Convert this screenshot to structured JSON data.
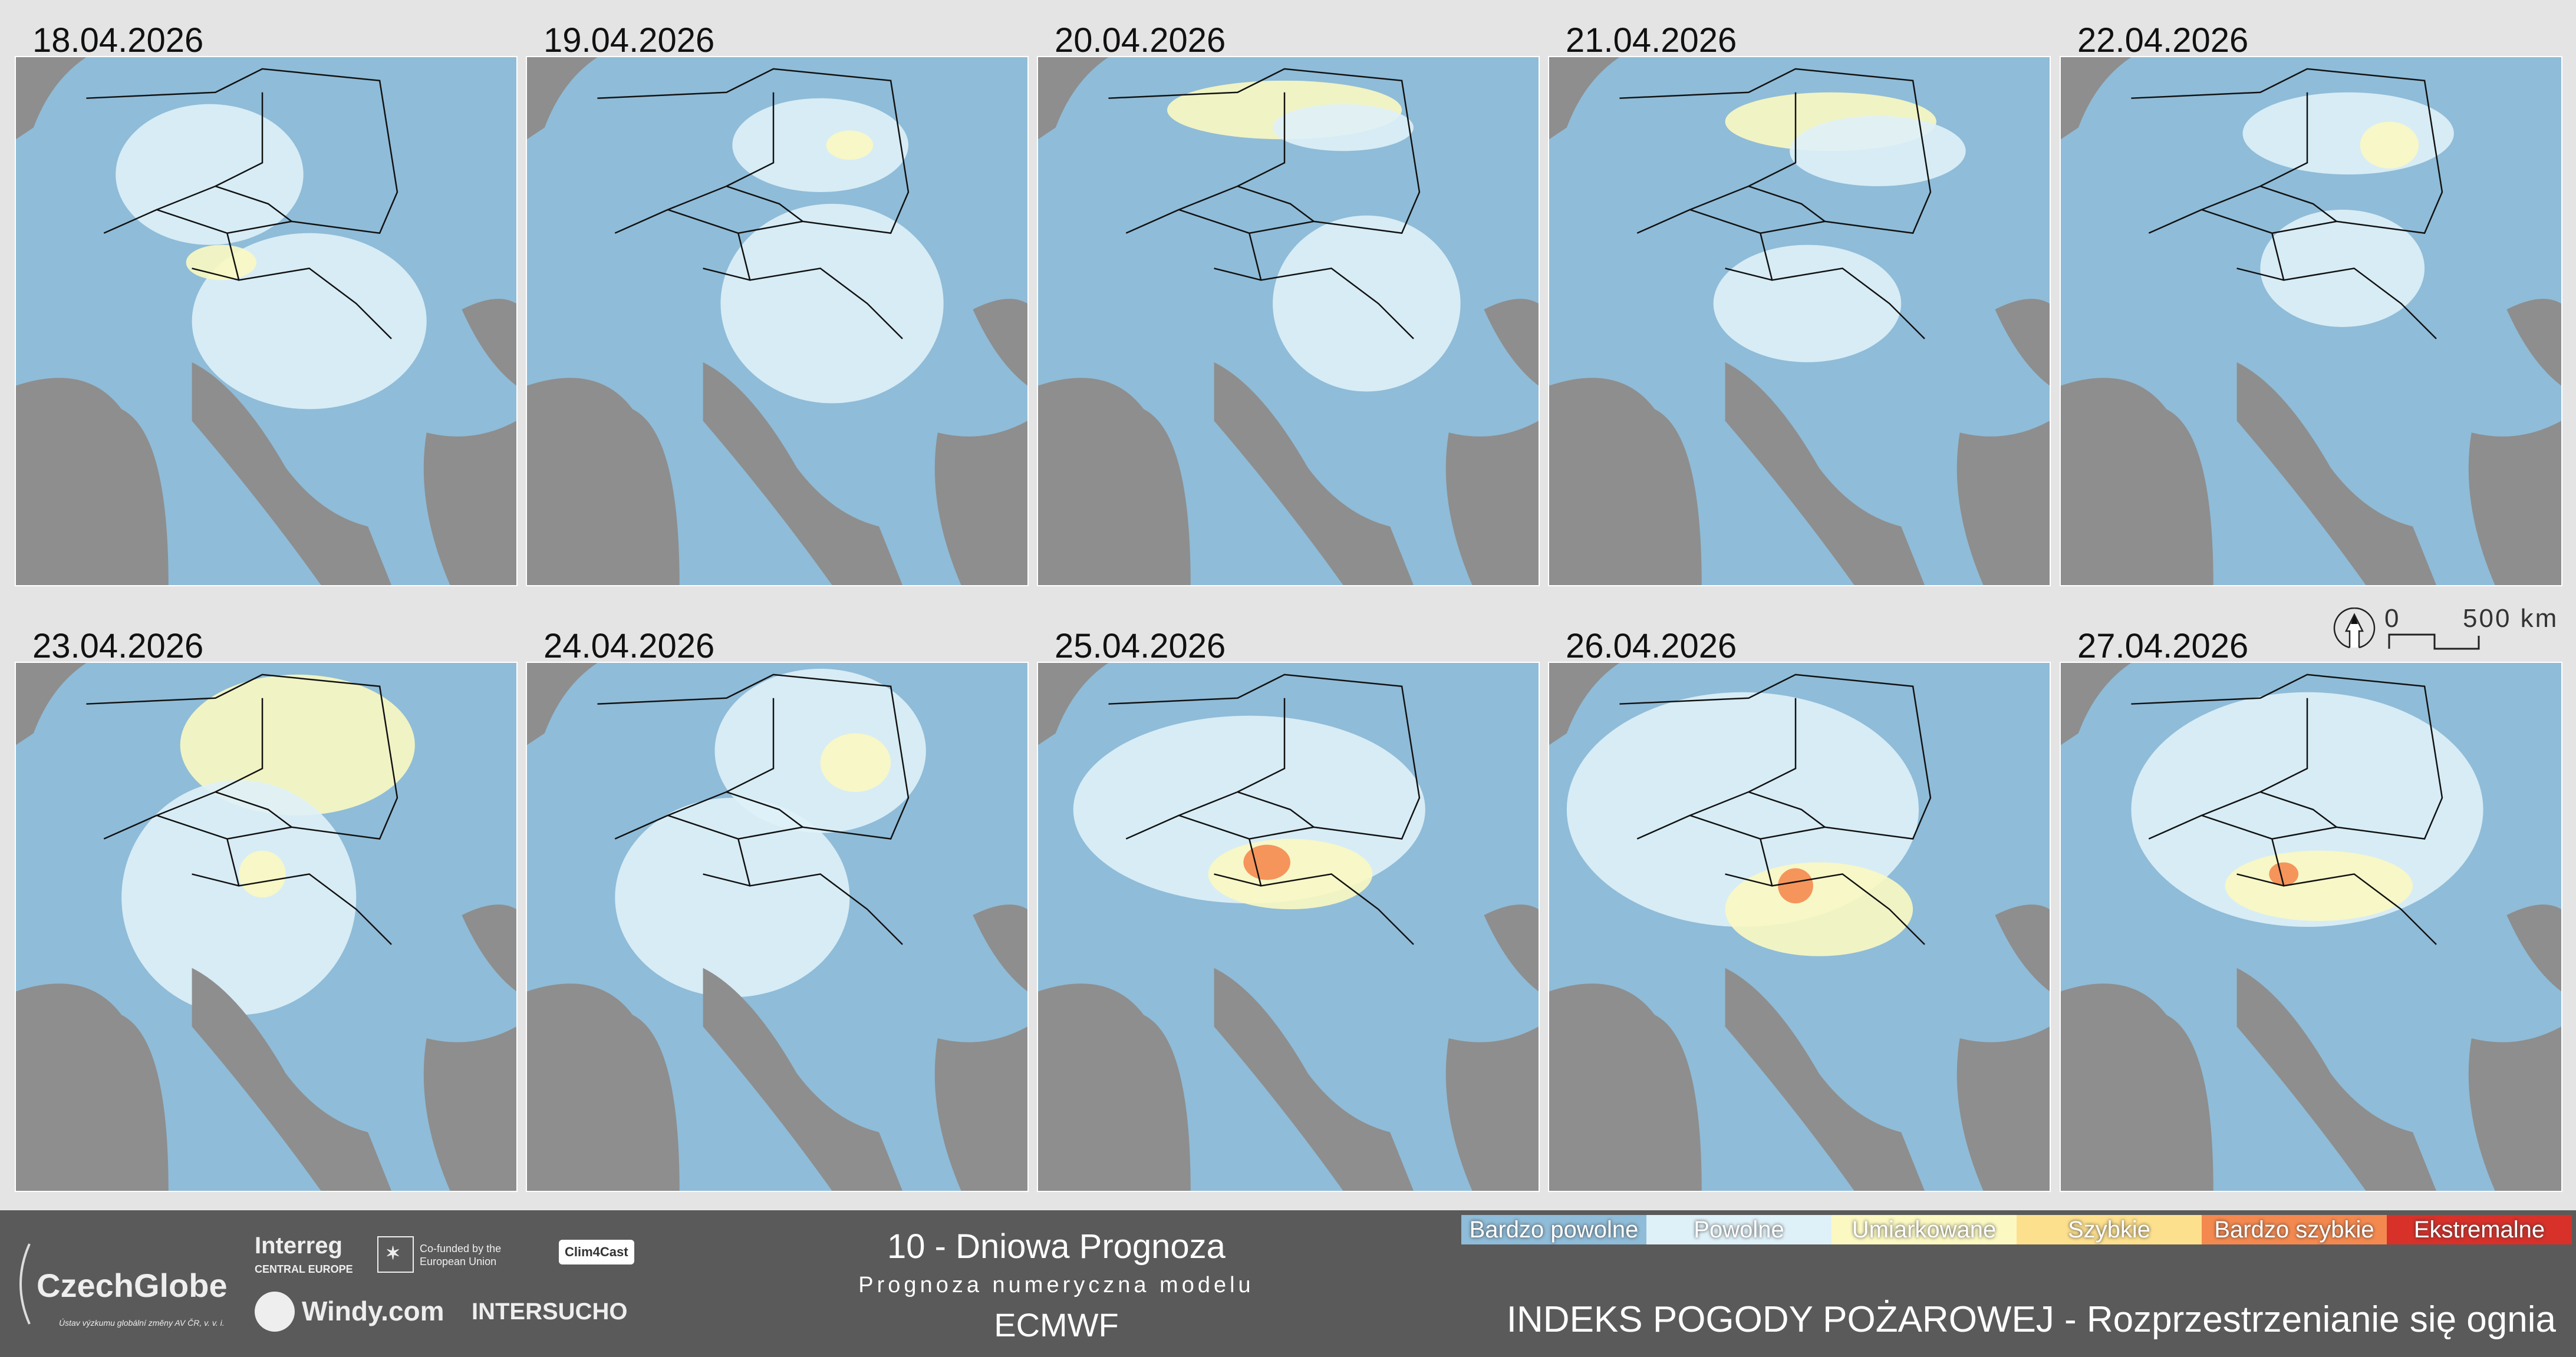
{
  "panels": [
    {
      "date": "18.04.2026"
    },
    {
      "date": "19.04.2026"
    },
    {
      "date": "20.04.2026"
    },
    {
      "date": "21.04.2026"
    },
    {
      "date": "22.04.2026"
    },
    {
      "date": "23.04.2026"
    },
    {
      "date": "24.04.2026"
    },
    {
      "date": "25.04.2026"
    },
    {
      "date": "26.04.2026"
    },
    {
      "date": "27.04.2026"
    }
  ],
  "scale_bar": {
    "start": "0",
    "end": "500 km",
    "icon": "north-arrow-icon"
  },
  "footer": {
    "title": "10 - Dniowa Prognoza",
    "subtitle": "Prognoza numeryczna modelu",
    "model": "ECMWF",
    "index_title": "INDEKS POGODY POŻAROWEJ - Rozprzestrzenianie się ognia",
    "logos": {
      "czechglobe": "CzechGlobe",
      "czechglobe_sub": "Ústav výzkumu globální změny AV ČR, v. v. i.",
      "interreg": "Interreg",
      "interreg_sub": "CENTRAL EUROPE",
      "eu": "Co-funded by the European Union",
      "clim4cast": "Clim4Cast",
      "windy": "Windy.com",
      "intersucho": "INTERSUCHO"
    }
  },
  "legend": [
    {
      "label": "Bardzo powolne",
      "color": "#8fbcd8"
    },
    {
      "label": "Powolne",
      "color": "#dff1f8"
    },
    {
      "label": "Umiarkowane",
      "color": "#fbf8c2"
    },
    {
      "label": "Szybkie",
      "color": "#fde08e"
    },
    {
      "label": "Bardzo szybkie",
      "color": "#f4894f"
    },
    {
      "label": "Ekstremalne",
      "color": "#d7312a"
    }
  ]
}
